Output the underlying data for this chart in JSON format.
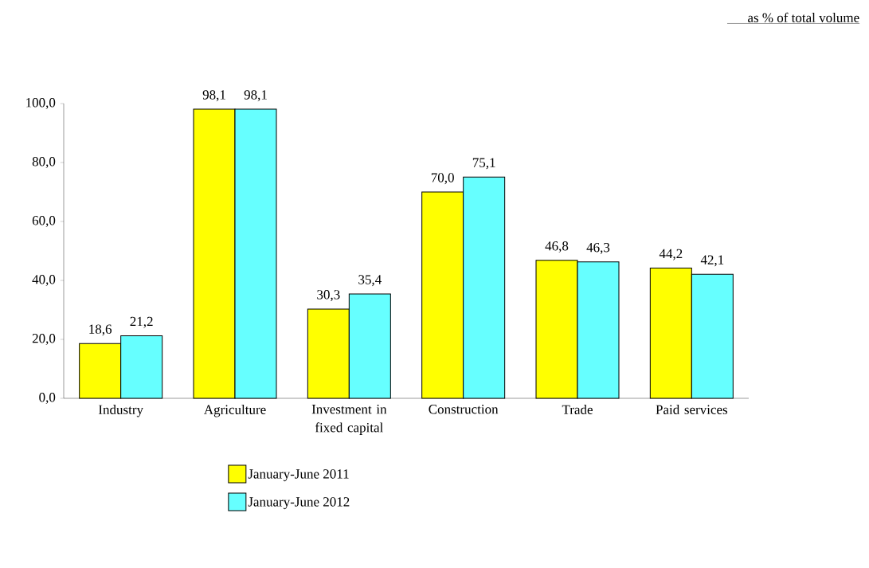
{
  "chart_data": {
    "type": "bar",
    "annotations": [
      "as % of total volume"
    ],
    "categories": [
      "Industry",
      "Agriculture",
      "Investment in fixed capital",
      "Construction",
      "Trade",
      "Paid services"
    ],
    "series": [
      {
        "name": "January-June 2011",
        "color": "#ffff00",
        "values": [
          18.6,
          98.1,
          30.3,
          70.0,
          46.8,
          44.2
        ],
        "value_labels": [
          "18,6",
          "98,1",
          "30,3",
          "70,0",
          "46,8",
          "44,2"
        ]
      },
      {
        "name": "January-June 2012",
        "color": "#66ffff",
        "values": [
          21.2,
          98.1,
          35.4,
          75.1,
          46.3,
          42.1
        ],
        "value_labels": [
          "21,2",
          "98,1",
          "35,4",
          "75,1",
          "46,3",
          "42,1"
        ]
      }
    ],
    "ylim": [
      0,
      100
    ],
    "yticks": [
      {
        "value": 0,
        "label": "0,0"
      },
      {
        "value": 20,
        "label": "20,0"
      },
      {
        "value": 40,
        "label": "40,0"
      },
      {
        "value": 60,
        "label": "60,0"
      },
      {
        "value": 80,
        "label": "80,0"
      },
      {
        "value": 100,
        "label": "100,0"
      }
    ],
    "grid": false,
    "legend": "bottom"
  }
}
